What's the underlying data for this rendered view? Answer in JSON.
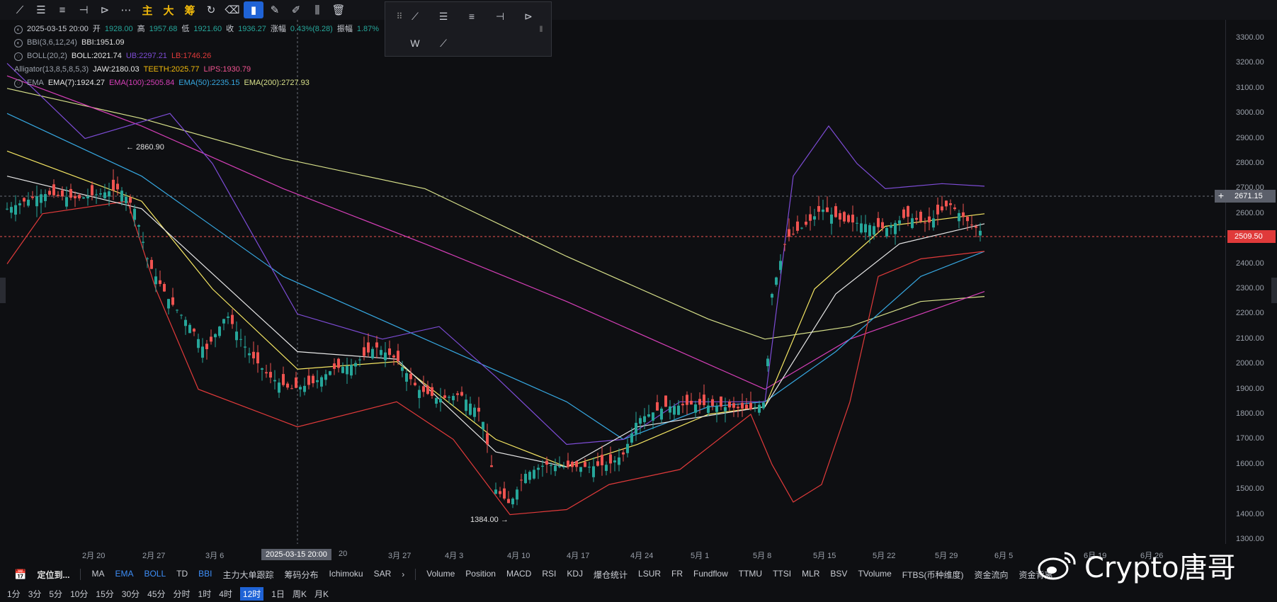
{
  "toolbar": {
    "icons": [
      "trendline-icon",
      "horizontal-lines-icon",
      "parallel-lines-icon",
      "horizontal-ray-icon",
      "arrow-path-icon",
      "more-icon"
    ],
    "cn_buttons": [
      "主",
      "大",
      "筹"
    ],
    "right_icons": [
      "redo-icon",
      "eraser-icon",
      "bookmark-icon",
      "brush-icon",
      "draw-icon",
      "candles-icon",
      "delete-icon"
    ]
  },
  "legend": {
    "date": "2025-03-15 20:00",
    "open_label": "开",
    "open": "1928.00",
    "high_label": "高",
    "high": "1957.68",
    "low_label": "低",
    "low": "1921.60",
    "close_label": "收",
    "close": "1936.27",
    "change_label": "涨幅",
    "change": "0.43%(8.28)",
    "amp_label": "振幅",
    "amp": "1.87%",
    "bbi_name": "BBI(3,6,12,24)",
    "bbi": "BBI:1951.09",
    "boll_name": "BOLL(20,2)",
    "boll": "BOLL:2021.74",
    "ub": "UB:2297.21",
    "lb": "LB:1746.26",
    "alligator_name": "Alligator(13,8,5,8,5,3)",
    "jaw": "JAW:2180.03",
    "teeth": "TEETH:2025.77",
    "lips": "LIPS:1930.79",
    "ema_name": "EMA",
    "ema7": "EMA(7):1924.27",
    "ema100": "EMA(100):2505.84",
    "ema50": "EMA(50):2235.15",
    "ema200": "EMA(200):2727.93"
  },
  "price_axis": [
    "3300.00",
    "3200.00",
    "3100.00",
    "3000.00",
    "2900.00",
    "2800.00",
    "2700.00",
    "2600.00",
    "2500.00",
    "2400.00",
    "2300.00",
    "2200.00",
    "2100.00",
    "2000.00",
    "1900.00",
    "1800.00",
    "1700.00",
    "1600.00",
    "1500.00",
    "1400.00",
    "1300.00"
  ],
  "price_tags": {
    "crosshair": "2671.15",
    "last": "2509.50"
  },
  "annotations": {
    "high": "2860.90",
    "low": "1384.00"
  },
  "time_axis": [
    "2月 20",
    "2月 27",
    "3月 6",
    "20",
    "3月 27",
    "4月 3",
    "4月 10",
    "4月 17",
    "4月 24",
    "5月 1",
    "5月 8",
    "5月 15",
    "5月 22",
    "5月 29",
    "6月 5",
    "6月 19",
    "6月 26"
  ],
  "crosshair_time": "2025-03-15 20:00",
  "indicators": {
    "locate": "定位到...",
    "main": [
      "MA",
      "EMA",
      "BOLL",
      "TD",
      "BBI",
      "主力大单跟踪",
      "筹码分布",
      "Ichimoku",
      "SAR"
    ],
    "sub": [
      "Volume",
      "Position",
      "MACD",
      "RSI",
      "KDJ",
      "爆仓统计",
      "LSUR",
      "FR",
      "Fundflow",
      "TTMU",
      "TTSI",
      "MLR",
      "BSV",
      "TVolume",
      "FTBS(币种维度)",
      "资金流向",
      "资金背离"
    ]
  },
  "timeframes": [
    "1分",
    "3分",
    "5分",
    "10分",
    "15分",
    "30分",
    "45分",
    "分时",
    "1时",
    "4时",
    "12时",
    "1日",
    "周K",
    "月K"
  ],
  "active_timeframe": "12时",
  "watermark": "Crypto唐哥",
  "colors": {
    "up": "#26a69a",
    "down": "#ef5350",
    "ema7": "#f5e663",
    "ema100": "#d63fb8",
    "ema50": "#36a7e0",
    "ema200": "#d7e08a",
    "ub": "#7d4cd6",
    "lb": "#e03a3a",
    "bg": "#0e0f12"
  }
}
